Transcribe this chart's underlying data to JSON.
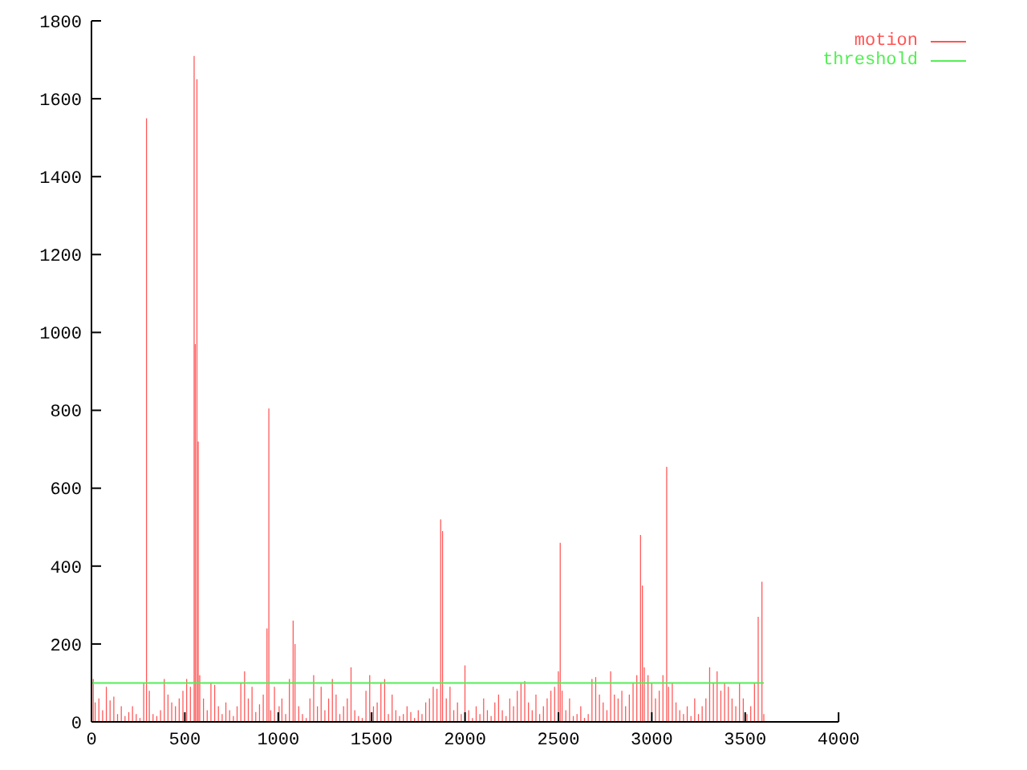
{
  "chart_data": {
    "type": "bar",
    "xlim": [
      0,
      4000
    ],
    "xticks": [
      0,
      500,
      1000,
      1500,
      2000,
      2500,
      3000,
      3500,
      4000
    ],
    "ylim": [
      0,
      1800
    ],
    "yticks": [
      0,
      200,
      400,
      600,
      800,
      1000,
      1200,
      1400,
      1600,
      1800
    ],
    "grid": false,
    "legend": "top right",
    "series": [
      {
        "name": "motion",
        "color": "#ff5555",
        "x": [
          10,
          20,
          40,
          60,
          80,
          100,
          120,
          140,
          160,
          180,
          200,
          220,
          240,
          260,
          280,
          295,
          310,
          330,
          350,
          370,
          390,
          410,
          430,
          450,
          470,
          490,
          510,
          530,
          550,
          556,
          565,
          572,
          580,
          600,
          620,
          640,
          660,
          680,
          700,
          720,
          740,
          760,
          780,
          800,
          820,
          840,
          860,
          880,
          900,
          920,
          940,
          950,
          960,
          980,
          1005,
          1020,
          1040,
          1060,
          1080,
          1090,
          1110,
          1130,
          1150,
          1170,
          1190,
          1210,
          1230,
          1250,
          1270,
          1290,
          1310,
          1330,
          1350,
          1370,
          1390,
          1410,
          1430,
          1450,
          1470,
          1490,
          1510,
          1530,
          1550,
          1570,
          1590,
          1610,
          1630,
          1650,
          1670,
          1690,
          1710,
          1730,
          1750,
          1770,
          1790,
          1810,
          1830,
          1850,
          1870,
          1880,
          1900,
          1920,
          1940,
          1960,
          1980,
          2000,
          2020,
          2040,
          2060,
          2080,
          2100,
          2120,
          2140,
          2160,
          2180,
          2200,
          2220,
          2240,
          2260,
          2280,
          2300,
          2320,
          2340,
          2360,
          2380,
          2400,
          2420,
          2440,
          2460,
          2480,
          2500,
          2510,
          2520,
          2540,
          2560,
          2580,
          2600,
          2620,
          2640,
          2660,
          2680,
          2700,
          2720,
          2740,
          2760,
          2780,
          2800,
          2820,
          2840,
          2860,
          2880,
          2900,
          2920,
          2940,
          2950,
          2960,
          2980,
          3000,
          3020,
          3040,
          3060,
          3080,
          3090,
          3110,
          3130,
          3150,
          3170,
          3190,
          3210,
          3230,
          3250,
          3270,
          3290,
          3310,
          3330,
          3350,
          3370,
          3390,
          3410,
          3430,
          3450,
          3470,
          3490,
          3510,
          3530,
          3550,
          3570,
          3590,
          3600
        ],
        "values": [
          110,
          50,
          60,
          30,
          90,
          55,
          65,
          20,
          40,
          15,
          25,
          40,
          20,
          10,
          100,
          1550,
          80,
          20,
          15,
          30,
          110,
          70,
          50,
          40,
          60,
          80,
          110,
          90,
          1710,
          970,
          1650,
          720,
          120,
          60,
          30,
          100,
          95,
          40,
          20,
          50,
          30,
          15,
          40,
          100,
          130,
          60,
          90,
          25,
          45,
          70,
          240,
          805,
          30,
          90,
          40,
          60,
          20,
          110,
          260,
          200,
          40,
          20,
          10,
          60,
          120,
          40,
          90,
          30,
          60,
          110,
          70,
          20,
          40,
          60,
          140,
          30,
          15,
          10,
          80,
          120,
          40,
          50,
          100,
          110,
          20,
          70,
          30,
          15,
          20,
          40,
          25,
          10,
          30,
          20,
          50,
          60,
          90,
          85,
          520,
          490,
          60,
          90,
          30,
          50,
          20,
          145,
          30,
          10,
          40,
          20,
          60,
          30,
          15,
          50,
          70,
          30,
          15,
          60,
          40,
          80,
          100,
          105,
          50,
          30,
          70,
          20,
          40,
          60,
          80,
          90,
          130,
          460,
          80,
          30,
          60,
          15,
          20,
          40,
          10,
          20,
          110,
          115,
          70,
          50,
          30,
          130,
          70,
          60,
          80,
          40,
          70,
          100,
          120,
          480,
          350,
          140,
          120,
          100,
          60,
          80,
          120,
          655,
          90,
          100,
          50,
          30,
          20,
          40,
          15,
          60,
          20,
          40,
          60,
          140,
          100,
          130,
          80,
          100,
          90,
          60,
          40,
          100,
          60,
          20,
          40,
          100,
          270,
          360,
          20
        ]
      },
      {
        "name": "threshold",
        "type": "line",
        "color": "#55ee55",
        "x": [
          0,
          3600
        ],
        "values": [
          100,
          100
        ]
      }
    ]
  }
}
